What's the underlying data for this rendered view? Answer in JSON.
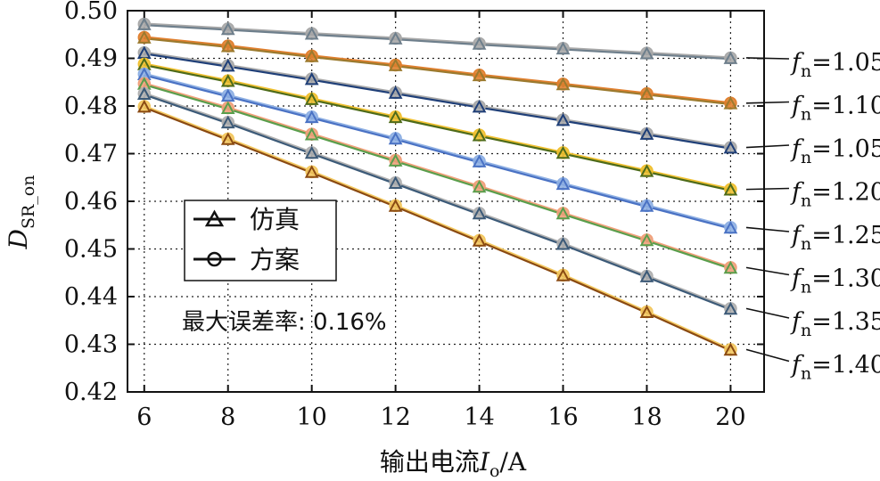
{
  "chart_data": {
    "type": "line",
    "title": "",
    "xlabel": "输出电流I_o/A",
    "xlabel_main": "输出电流",
    "xlabel_var": "I",
    "xlabel_sub": "o",
    "xlabel_unit": "/A",
    "ylabel_main": "D",
    "ylabel_sub": "SR_on",
    "xlim": [
      5.6,
      20.8
    ],
    "ylim": [
      0.42,
      0.5
    ],
    "x": [
      6,
      8,
      10,
      12,
      14,
      16,
      18,
      20
    ],
    "xticks": [
      "6",
      "8",
      "10",
      "12",
      "14",
      "16",
      "18",
      "20"
    ],
    "yticks": [
      "0.42",
      "0.43",
      "0.44",
      "0.45",
      "0.46",
      "0.47",
      "0.48",
      "0.49",
      "0.50"
    ],
    "ytick_values": [
      0.42,
      0.43,
      0.44,
      0.45,
      0.46,
      0.47,
      0.48,
      0.49,
      0.5
    ],
    "grid": true,
    "legend": [
      {
        "label": "仿真",
        "marker": "triangle"
      },
      {
        "label": "方案",
        "marker": "circle"
      }
    ],
    "annotation": "最大误差率: 0.16%",
    "curve_label_prefix": "f",
    "curve_label_sub": "n",
    "series": [
      {
        "label": "=1.05",
        "values": [
          0.4972,
          0.4962,
          0.4952,
          0.4942,
          0.4931,
          0.4921,
          0.4911,
          0.4901
        ],
        "sim_color": "#6e7f8c",
        "calc_color": "#a9a9a9"
      },
      {
        "label": "=1.10",
        "values": [
          0.4944,
          0.4926,
          0.4905,
          0.4886,
          0.4865,
          0.4846,
          0.4826,
          0.4806
        ],
        "sim_color": "#9b7a2e",
        "calc_color": "#e07f2e"
      },
      {
        "label": "=1.05",
        "values": [
          0.4912,
          0.4885,
          0.4857,
          0.4828,
          0.4799,
          0.4771,
          0.4742,
          0.4713
        ],
        "sim_color": "#1f3f78",
        "calc_color": "#a9a9a9"
      },
      {
        "label": "=1.20",
        "values": [
          0.4888,
          0.4853,
          0.4815,
          0.4777,
          0.4739,
          0.4702,
          0.4664,
          0.4625
        ],
        "sim_color": "#4e6b1a",
        "calc_color": "#f0c030"
      },
      {
        "label": "=1.25",
        "values": [
          0.4867,
          0.4822,
          0.4777,
          0.4732,
          0.4684,
          0.4637,
          0.4591,
          0.4545
        ],
        "sim_color": "#4a72c4",
        "calc_color": "#8fb0e3"
      },
      {
        "label": "=1.30",
        "values": [
          0.4847,
          0.4796,
          0.4741,
          0.4686,
          0.4631,
          0.4575,
          0.4519,
          0.4461
        ],
        "sim_color": "#5a9e4c",
        "calc_color": "#f0a07a"
      },
      {
        "label": "=1.35",
        "values": [
          0.4826,
          0.4766,
          0.4702,
          0.4639,
          0.4575,
          0.4511,
          0.4443,
          0.4375
        ],
        "sim_color": "#3c5a78",
        "calc_color": "#b0b0b0"
      },
      {
        "label": "=1.40",
        "values": [
          0.4799,
          0.4731,
          0.4662,
          0.4591,
          0.4518,
          0.4445,
          0.4368,
          0.4289
        ],
        "sim_color": "#8a4a12",
        "calc_color": "#f3c860"
      }
    ]
  }
}
